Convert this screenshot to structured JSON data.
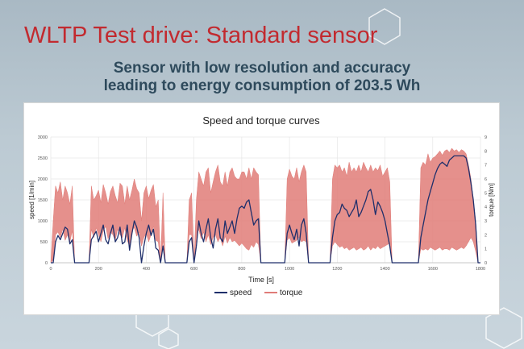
{
  "slide": {
    "title": "WLTP Test drive: Standard sensor",
    "subtitle_line1": "Sensor with low resolution and accuracy",
    "subtitle_line2": "leading to energy consumption of 203.5 Wh"
  },
  "colors": {
    "title": "#c22a2f",
    "subtitle": "#2e4a5c",
    "speed": "#1f2f6b",
    "torque": "#e07c78"
  },
  "chart_data": {
    "type": "line",
    "title": "Speed and torque curves",
    "xlabel": "Time [s]",
    "ylabel": "speed [1/min]",
    "y2label": "torque [Nm]",
    "xlim": [
      0,
      1800
    ],
    "ylim": [
      0,
      3000
    ],
    "y2lim": [
      0,
      9
    ],
    "xticks": [
      0,
      200,
      400,
      600,
      800,
      1000,
      1200,
      1400,
      1600,
      1800
    ],
    "yticks": [
      0,
      500,
      1000,
      1500,
      2000,
      2500,
      3000
    ],
    "y2ticks": [
      0,
      1,
      2,
      3,
      4,
      5,
      6,
      7,
      8,
      9
    ],
    "legend_position": "bottom",
    "grid": true,
    "series": [
      {
        "name": "speed",
        "axis": "left",
        "x": [
          0,
          10,
          20,
          30,
          40,
          50,
          60,
          70,
          80,
          90,
          100,
          110,
          120,
          130,
          140,
          150,
          160,
          170,
          180,
          190,
          200,
          210,
          220,
          230,
          240,
          250,
          260,
          270,
          280,
          290,
          300,
          310,
          320,
          330,
          340,
          350,
          360,
          370,
          380,
          390,
          400,
          410,
          420,
          430,
          440,
          450,
          460,
          470,
          480,
          490,
          500,
          510,
          520,
          530,
          540,
          550,
          560,
          570,
          580,
          590,
          600,
          610,
          620,
          630,
          640,
          650,
          660,
          670,
          680,
          690,
          700,
          710,
          720,
          730,
          740,
          750,
          760,
          770,
          780,
          790,
          800,
          810,
          820,
          830,
          840,
          850,
          860,
          870,
          880,
          890,
          900,
          910,
          920,
          930,
          940,
          950,
          960,
          970,
          980,
          990,
          1000,
          1010,
          1020,
          1030,
          1040,
          1050,
          1060,
          1070,
          1080,
          1090,
          1100,
          1110,
          1120,
          1130,
          1140,
          1150,
          1160,
          1170,
          1180,
          1190,
          1200,
          1210,
          1220,
          1230,
          1240,
          1250,
          1260,
          1270,
          1280,
          1290,
          1300,
          1310,
          1320,
          1330,
          1340,
          1350,
          1360,
          1370,
          1380,
          1390,
          1400,
          1410,
          1420,
          1430,
          1440,
          1450,
          1460,
          1470,
          1480,
          1490,
          1500,
          1510,
          1520,
          1530,
          1540,
          1550,
          1560,
          1570,
          1580,
          1590,
          1600,
          1610,
          1620,
          1630,
          1640,
          1650,
          1660,
          1670,
          1680,
          1690,
          1700,
          1710,
          1720,
          1730,
          1740,
          1750,
          1760,
          1770,
          1780,
          1790,
          1800
        ],
        "values": [
          0,
          0,
          500,
          650,
          550,
          700,
          850,
          800,
          450,
          550,
          0,
          0,
          0,
          0,
          0,
          0,
          0,
          550,
          650,
          750,
          500,
          700,
          900,
          550,
          450,
          700,
          900,
          500,
          600,
          850,
          450,
          500,
          900,
          300,
          700,
          1000,
          850,
          600,
          0,
          400,
          700,
          900,
          650,
          800,
          350,
          300,
          0,
          400,
          0,
          0,
          0,
          0,
          0,
          0,
          0,
          0,
          0,
          0,
          500,
          600,
          0,
          400,
          1000,
          700,
          500,
          800,
          1050,
          600,
          350,
          800,
          1050,
          600,
          500,
          1000,
          700,
          850,
          1000,
          700,
          1050,
          1300,
          1350,
          1300,
          1450,
          1500,
          1200,
          900,
          1000,
          1050,
          0,
          0,
          0,
          0,
          0,
          0,
          0,
          0,
          0,
          0,
          0,
          700,
          900,
          700,
          550,
          800,
          400,
          900,
          1050,
          700,
          0,
          0,
          0,
          0,
          0,
          0,
          0,
          0,
          0,
          0,
          600,
          1000,
          1150,
          1200,
          1400,
          1300,
          1250,
          1100,
          1200,
          1300,
          1500,
          1100,
          1200,
          1350,
          1500,
          1700,
          1750,
          1500,
          1150,
          1450,
          1350,
          1200,
          1000,
          700,
          400,
          0,
          0,
          0,
          0,
          0,
          0,
          0,
          0,
          0,
          0,
          0,
          0,
          600,
          900,
          1200,
          1500,
          1700,
          1900,
          2100,
          2250,
          2350,
          2400,
          2350,
          2300,
          2450,
          2500,
          2550,
          2550,
          2550,
          2550,
          2550,
          2500,
          2250,
          1900,
          1500,
          900,
          0,
          0
        ]
      },
      {
        "name": "torque",
        "axis": "right",
        "x": [
          0,
          10,
          20,
          30,
          40,
          50,
          60,
          70,
          80,
          90,
          100,
          110,
          120,
          130,
          140,
          150,
          160,
          170,
          180,
          190,
          200,
          210,
          220,
          230,
          240,
          250,
          260,
          270,
          280,
          290,
          300,
          310,
          320,
          330,
          340,
          350,
          360,
          370,
          380,
          390,
          400,
          410,
          420,
          430,
          440,
          450,
          460,
          470,
          480,
          490,
          500,
          510,
          520,
          530,
          540,
          550,
          560,
          570,
          580,
          590,
          600,
          610,
          620,
          630,
          640,
          650,
          660,
          670,
          680,
          690,
          700,
          710,
          720,
          730,
          740,
          750,
          760,
          770,
          780,
          790,
          800,
          810,
          820,
          830,
          840,
          850,
          860,
          870,
          880,
          890,
          900,
          910,
          920,
          930,
          940,
          950,
          960,
          970,
          980,
          990,
          1000,
          1010,
          1020,
          1030,
          1040,
          1050,
          1060,
          1070,
          1080,
          1090,
          1100,
          1110,
          1120,
          1130,
          1140,
          1150,
          1160,
          1170,
          1180,
          1190,
          1200,
          1210,
          1220,
          1230,
          1240,
          1250,
          1260,
          1270,
          1280,
          1290,
          1300,
          1310,
          1320,
          1330,
          1340,
          1350,
          1360,
          1370,
          1380,
          1390,
          1400,
          1410,
          1420,
          1430,
          1440,
          1450,
          1460,
          1470,
          1480,
          1490,
          1500,
          1510,
          1520,
          1530,
          1540,
          1550,
          1560,
          1570,
          1580,
          1590,
          1600,
          1610,
          1620,
          1630,
          1640,
          1650,
          1660,
          1670,
          1680,
          1690,
          1700,
          1710,
          1720,
          1730,
          1740,
          1750,
          1760,
          1770,
          1780,
          1790,
          1800
        ],
        "upper": [
          0,
          3.0,
          5.5,
          5.0,
          5.8,
          4.5,
          5.5,
          5.0,
          4.2,
          5.5,
          0,
          0,
          0,
          0,
          0,
          0,
          0,
          5.5,
          4.5,
          4.8,
          5.2,
          4.3,
          5.6,
          5.0,
          4.2,
          5.1,
          5.5,
          4.8,
          4.3,
          5.7,
          5.5,
          4.2,
          5.5,
          4.5,
          5.2,
          6.0,
          5.3,
          5.0,
          3.0,
          5.0,
          5.5,
          4.6,
          5.2,
          5.6,
          4.0,
          4.5,
          0,
          5.0,
          0,
          0,
          0,
          0,
          0,
          0,
          0,
          0,
          0,
          0,
          4.5,
          5.0,
          0,
          4.5,
          6.5,
          6.0,
          5.5,
          6.5,
          6.8,
          5.0,
          5.8,
          6.5,
          7.0,
          5.8,
          5.5,
          6.5,
          5.5,
          6.5,
          6.8,
          6.2,
          6.0,
          6.0,
          6.5,
          6.5,
          6.0,
          6.8,
          6.0,
          6.8,
          6.5,
          6.3,
          0,
          0,
          0,
          0,
          0,
          0,
          0,
          0,
          0,
          0,
          0,
          6.0,
          6.7,
          6.2,
          6.0,
          6.8,
          5.8,
          6.5,
          7.0,
          6.5,
          0,
          0,
          0,
          0,
          0,
          0,
          0,
          0,
          0,
          0,
          6.0,
          7.0,
          6.8,
          7.0,
          6.5,
          6.8,
          6.2,
          7.2,
          6.5,
          6.8,
          6.5,
          7.0,
          6.5,
          7.2,
          6.8,
          6.5,
          7.0,
          6.5,
          6.8,
          6.6,
          7.0,
          6.2,
          6.5,
          6.8,
          5.8,
          0,
          0,
          0,
          0,
          0,
          0,
          0,
          0,
          0,
          0,
          0,
          0,
          6.8,
          7.2,
          7.0,
          7.8,
          7.2,
          7.5,
          7.6,
          7.8,
          8.0,
          7.7,
          8.0,
          8.1,
          7.9,
          8.2,
          8.0,
          8.1,
          7.9,
          8.1,
          8.0,
          7.8,
          7.0,
          6.0,
          4.5,
          3.0,
          0,
          0
        ],
        "lower": [
          0,
          0.2,
          2.0,
          2.2,
          1.8,
          2.4,
          1.6,
          2.0,
          1.5,
          2.3,
          0,
          0,
          0,
          0,
          0,
          0,
          0,
          2.4,
          1.8,
          2.5,
          2.0,
          1.5,
          2.3,
          2.6,
          1.7,
          2.2,
          2.0,
          1.6,
          2.4,
          2.0,
          1.8,
          2.5,
          1.6,
          1.2,
          2.4,
          2.5,
          1.9,
          2.2,
          1.2,
          1.8,
          2.1,
          1.5,
          2.0,
          2.6,
          1.6,
          1.5,
          0,
          1.6,
          0,
          0,
          0,
          0,
          0,
          0,
          0,
          0,
          0,
          0,
          2.0,
          2.0,
          0,
          1.8,
          2.4,
          1.7,
          2.2,
          1.5,
          2.0,
          1.3,
          1.8,
          2.0,
          1.5,
          1.8,
          1.2,
          1.9,
          1.4,
          1.8,
          1.5,
          1.6,
          1.4,
          1.2,
          1.4,
          1.2,
          1.0,
          0.9,
          1.3,
          1.1,
          1.5,
          1.3,
          0,
          0,
          0,
          0,
          0,
          0,
          0,
          0,
          0,
          0,
          0,
          1.6,
          1.8,
          1.4,
          1.5,
          1.6,
          1.8,
          1.5,
          1.6,
          1.5,
          0,
          0,
          0,
          0,
          0,
          0,
          0,
          0,
          0,
          0,
          1.2,
          1.5,
          1.3,
          1.1,
          1.2,
          1.0,
          1.1,
          0.9,
          1.0,
          1.1,
          0.9,
          1.0,
          1.1,
          0.9,
          1.0,
          1.2,
          0.9,
          1.1,
          1.0,
          1.2,
          1.0,
          1.1,
          1.2,
          1.3,
          1.4,
          0,
          0,
          0,
          0,
          0,
          0,
          0,
          0,
          0,
          0,
          0,
          0,
          1.0,
          0.9,
          1.0,
          0.9,
          1.1,
          1.0,
          0.9,
          1.0,
          1.1,
          0.9,
          1.0,
          1.0,
          0.9,
          1.1,
          1.0,
          0.9,
          1.0,
          1.1,
          1.0,
          1.2,
          1.5,
          1.8,
          1.5,
          0.8,
          0,
          0
        ]
      }
    ]
  }
}
